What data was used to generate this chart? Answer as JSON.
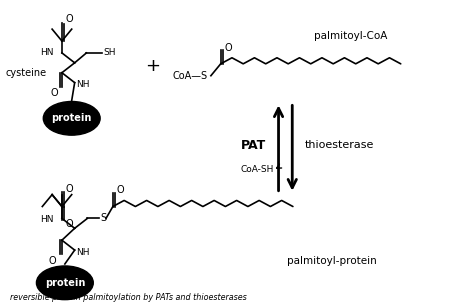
{
  "bg_color": "#ffffff",
  "text_color": "#000000",
  "arrow_color": "#000000",
  "title_bottom": "reversible protein palmitoylation by PATs and thioesterases",
  "label_cysteine": "cysteine",
  "label_palmitoyl_coa": "palmitoyl-CoA",
  "label_PAT": "PAT",
  "label_thioesterase": "thioesterase",
  "label_CoA_SH": "CoA-SH",
  "label_palmitoyl_protein": "palmitoyl-protein",
  "label_protein": "protein",
  "label_plus": "+",
  "figsize": [
    4.74,
    3.05
  ],
  "dpi": 100
}
